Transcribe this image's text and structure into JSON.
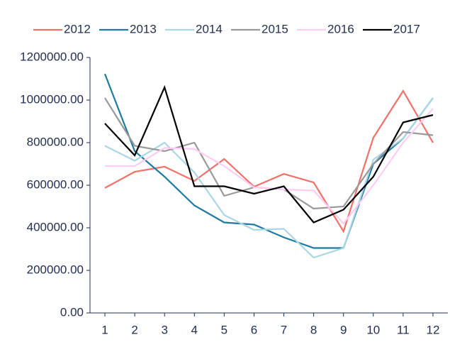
{
  "chart_data": {
    "type": "line",
    "x": [
      1,
      2,
      3,
      4,
      5,
      6,
      7,
      8,
      9,
      10,
      11,
      12
    ],
    "xlim": [
      0.5,
      12.5
    ],
    "xticks": [
      1,
      2,
      3,
      4,
      5,
      6,
      7,
      8,
      9,
      10,
      11,
      12
    ],
    "ylim": [
      0,
      1200000
    ],
    "yticks": [
      {
        "value": 0,
        "label": "0.00"
      },
      {
        "value": 200000,
        "label": "200000.00"
      },
      {
        "value": 400000,
        "label": "400000.00"
      },
      {
        "value": 600000,
        "label": "600000.00"
      },
      {
        "value": 800000,
        "label": "800000.00"
      },
      {
        "value": 1000000,
        "label": "1000000.00"
      },
      {
        "value": 1200000,
        "label": "1200000.00"
      }
    ],
    "legend": "top",
    "series": [
      {
        "name": "2012",
        "color": "#f0706a",
        "values": [
          587000,
          663000,
          687000,
          620000,
          723000,
          593000,
          653000,
          613000,
          383000,
          823000,
          1043000,
          800000
        ]
      },
      {
        "name": "2013",
        "color": "#1f7aa0",
        "values": [
          1123000,
          760000,
          640000,
          505000,
          425000,
          415000,
          355000,
          305000,
          305000,
          700000,
          820000,
          1010000
        ]
      },
      {
        "name": "2014",
        "color": "#a9d6e5",
        "values": [
          785000,
          715000,
          800000,
          660000,
          460000,
          390000,
          395000,
          260000,
          305000,
          720000,
          820000,
          1010000
        ]
      },
      {
        "name": "2015",
        "color": "#999999",
        "values": [
          1010000,
          785000,
          760000,
          800000,
          550000,
          590000,
          580000,
          490000,
          500000,
          700000,
          850000,
          835000
        ]
      },
      {
        "name": "2016",
        "color": "#ffccf5",
        "values": [
          690000,
          690000,
          775000,
          770000,
          690000,
          590000,
          580000,
          575000,
          420000,
          600000,
          800000,
          960000
        ]
      },
      {
        "name": "2017",
        "color": "#000000",
        "values": [
          890000,
          740000,
          1060000,
          595000,
          595000,
          560000,
          595000,
          425000,
          485000,
          640000,
          895000,
          930000
        ]
      }
    ]
  }
}
